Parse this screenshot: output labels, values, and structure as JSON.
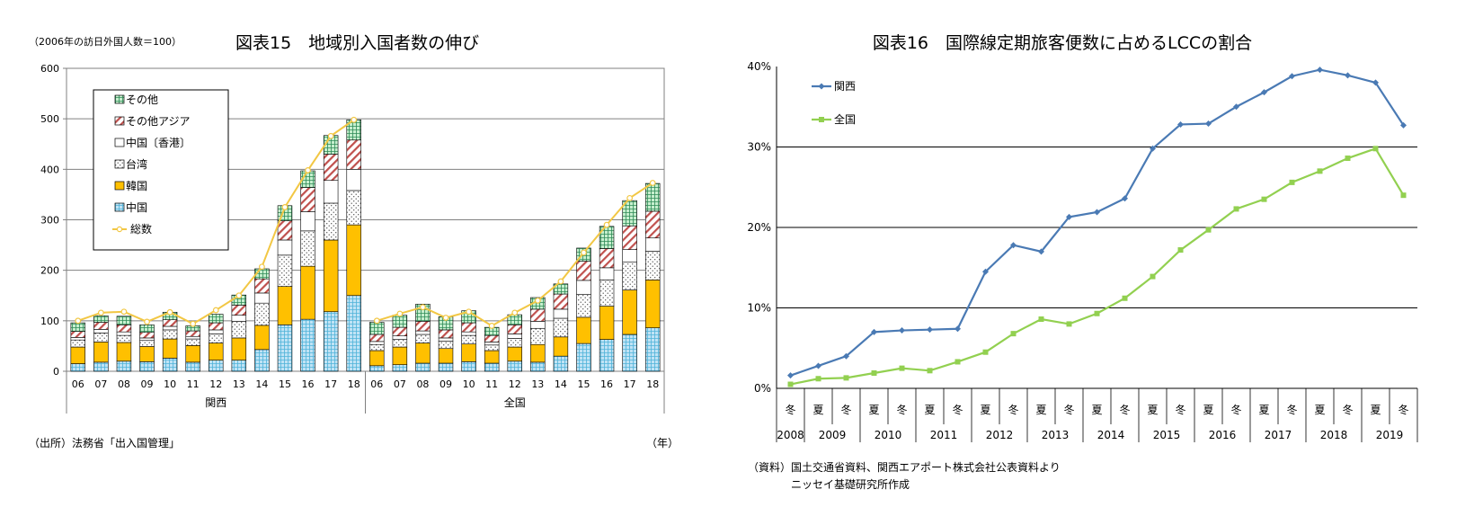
{
  "chart_data": [
    {
      "type": "bar",
      "stacked": true,
      "title": "図表15　地域別入国者数の伸び",
      "note": "（2006年の訪日外国人数＝100）",
      "source": "（出所）法務省「出入国管理」",
      "unit_label": "（年）",
      "ylim": [
        0,
        600
      ],
      "yticks": [
        "0",
        "100",
        "200",
        "300",
        "400",
        "500",
        "600"
      ],
      "groups": [
        "関西",
        "全国"
      ],
      "categories": [
        "06",
        "07",
        "08",
        "09",
        "10",
        "11",
        "12",
        "13",
        "14",
        "15",
        "16",
        "17",
        "18"
      ],
      "series": [
        {
          "name": "中国",
          "key": "china",
          "color": "#bfe3f5",
          "values": {
            "関西": [
              15,
              18,
              20,
              19,
              26,
              18,
              22,
              22,
              43,
              92,
              103,
              118,
              150
            ],
            "全国": [
              11,
              13,
              16,
              16,
              19,
              16,
              20,
              18,
              30,
              55,
              63,
              73,
              86
            ]
          }
        },
        {
          "name": "韓国",
          "key": "korea",
          "color": "#ffc000",
          "values": {
            "関西": [
              33,
              40,
              37,
              30,
              38,
              33,
              34,
              44,
              48,
              76,
              105,
              142,
              140
            ],
            "全国": [
              30,
              35,
              40,
              29,
              35,
              25,
              28,
              35,
              38,
              52,
              66,
              88,
              95
            ]
          }
        },
        {
          "name": "台湾",
          "key": "taiwan",
          "color": "#ffffff",
          "values": {
            "関西": [
              14,
              18,
              14,
              12,
              18,
              13,
              18,
              33,
              44,
              62,
              70,
              73,
              68
            ],
            "全国": [
              12,
              15,
              17,
              15,
              17,
              11,
              17,
              32,
              37,
              45,
              52,
              55,
              57
            ]
          }
        },
        {
          "name": "中国〔香港〕",
          "key": "hongkong",
          "color": "#ffffff",
          "values": {
            "関西": [
              5,
              7,
              7,
              5,
              7,
              5,
              8,
              12,
              20,
              30,
              38,
              45,
              42
            ],
            "全国": [
              6,
              7,
              7,
              6,
              7,
              6,
              9,
              14,
              18,
              28,
              24,
              25,
              26
            ]
          }
        },
        {
          "name": "その他アジア",
          "key": "otherasia",
          "color": "#ffffff",
          "values": {
            "関西": [
              12,
              14,
              14,
              11,
              13,
              11,
              14,
              20,
              28,
              38,
              48,
              52,
              58
            ],
            "全国": [
              14,
              17,
              19,
              16,
              18,
              13,
              18,
              24,
              30,
              38,
              38,
              47,
              53
            ]
          }
        },
        {
          "name": "その他",
          "key": "other",
          "color": "#c6efce",
          "values": {
            "関西": [
              17,
              13,
              17,
              15,
              15,
              10,
              17,
              20,
              20,
              30,
              33,
              37,
              40
            ],
            "全国": [
              24,
              24,
              34,
              26,
              24,
              16,
              20,
              23,
              20,
              26,
              44,
              50,
              55
            ]
          }
        }
      ],
      "total": {
        "name": "総数",
        "color": "#f2c744",
        "values": {
          "関西": [
            100,
            116,
            118,
            98,
            117,
            94,
            121,
            150,
            207,
            325,
            398,
            466,
            498
          ],
          "全国": [
            100,
            114,
            127,
            106,
            118,
            90,
            116,
            140,
            178,
            235,
            290,
            343,
            373
          ]
        }
      }
    },
    {
      "type": "line",
      "title": "図表16　国際線定期旅客便数に占めるLCCの割合",
      "source_lines": [
        "（資料）国土交通省資料、関西エアポート株式会社公表資料より",
        "ニッセイ基礎研究所作成"
      ],
      "ylim": [
        0,
        40
      ],
      "yticks": [
        "0%",
        "10%",
        "20%",
        "30%",
        "40%"
      ],
      "season_labels": [
        "冬",
        "夏",
        "冬",
        "夏",
        "冬",
        "夏",
        "冬",
        "夏",
        "冬",
        "夏",
        "冬",
        "夏",
        "冬",
        "夏",
        "冬",
        "夏",
        "冬",
        "夏",
        "冬",
        "夏",
        "冬",
        "夏",
        "冬"
      ],
      "year_labels": [
        "2008",
        "2009",
        "2010",
        "2011",
        "2012",
        "2013",
        "2014",
        "2015",
        "2016",
        "2017",
        "2018",
        "2019"
      ],
      "series": [
        {
          "name": "関西",
          "color": "#4a7ab4",
          "values": [
            1.6,
            2.8,
            4.0,
            7.0,
            7.2,
            7.3,
            7.4,
            14.5,
            17.8,
            17.0,
            21.3,
            21.9,
            23.6,
            29.8,
            32.8,
            32.9,
            35.0,
            36.8,
            38.8,
            39.6,
            38.9,
            38.0,
            32.7
          ]
        },
        {
          "name": "全国",
          "color": "#92d050",
          "values": [
            0.5,
            1.2,
            1.3,
            1.9,
            2.5,
            2.2,
            3.3,
            4.5,
            6.8,
            8.6,
            8.0,
            9.3,
            11.2,
            13.9,
            17.2,
            19.7,
            22.3,
            23.5,
            25.6,
            27.0,
            28.6,
            29.8,
            24.0
          ]
        }
      ]
    }
  ]
}
